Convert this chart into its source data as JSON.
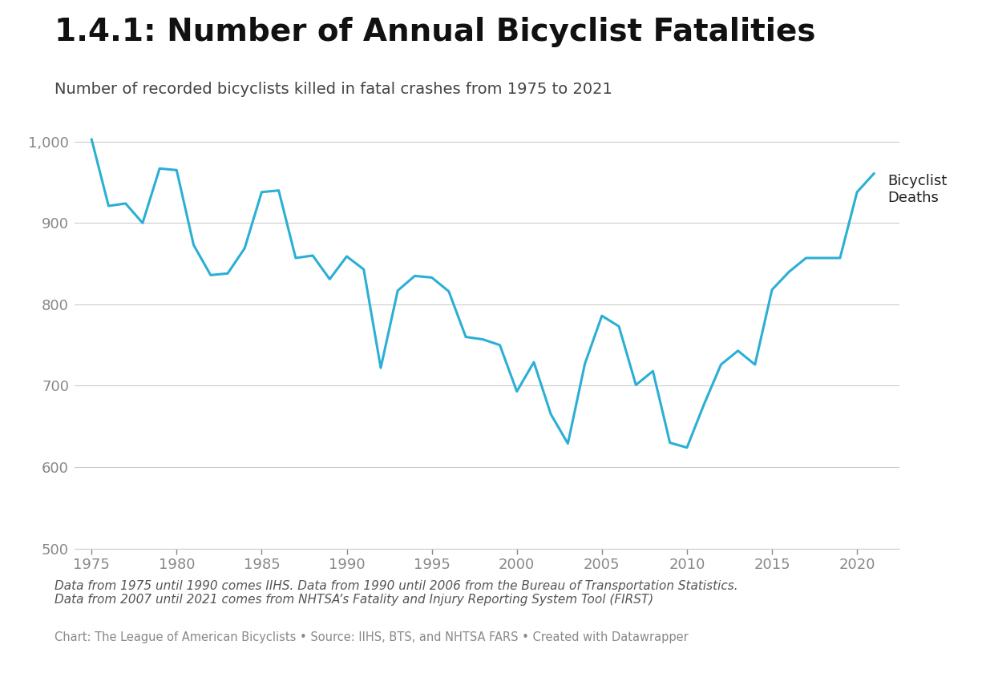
{
  "title": "1.4.1: Number of Annual Bicyclist Fatalities",
  "subtitle": "Number of recorded bicyclists killed in fatal crashes from 1975 to 2021",
  "line_color": "#2BAFD4",
  "line_width": 2.2,
  "background_color": "#ffffff",
  "label_text": "Bicyclist\nDeaths",
  "footer_italic": "Data from 1975 until 1990 comes IIHS. Data from 1990 until 2006 from the Bureau of Transportation Statistics.\nData from 2007 until 2021 comes from NHTSA’s Fatality and Injury Reporting System Tool (FIRST)",
  "footer_plain": "Chart: The League of American Bicyclists • Source: IIHS, BTS, and NHTSA FARS • Created with Datawrapper",
  "years": [
    1975,
    1976,
    1977,
    1978,
    1979,
    1980,
    1981,
    1982,
    1983,
    1984,
    1985,
    1986,
    1987,
    1988,
    1989,
    1990,
    1991,
    1992,
    1993,
    1994,
    1995,
    1996,
    1997,
    1998,
    1999,
    2000,
    2001,
    2002,
    2003,
    2004,
    2005,
    2006,
    2007,
    2008,
    2009,
    2010,
    2011,
    2012,
    2013,
    2014,
    2015,
    2016,
    2017,
    2018,
    2019,
    2020,
    2021
  ],
  "deaths": [
    1003,
    921,
    924,
    900,
    967,
    965,
    873,
    836,
    838,
    869,
    938,
    940,
    857,
    860,
    831,
    859,
    843,
    722,
    817,
    835,
    833,
    816,
    760,
    757,
    750,
    693,
    729,
    665,
    629,
    727,
    786,
    773,
    701,
    718,
    630,
    624,
    677,
    726,
    743,
    726,
    818,
    840,
    857,
    857,
    857,
    938,
    961
  ],
  "ylim": [
    500,
    1050
  ],
  "xlim": [
    1974.0,
    2022.5
  ],
  "yticks": [
    500,
    600,
    700,
    800,
    900,
    1000
  ],
  "xticks": [
    1975,
    1980,
    1985,
    1990,
    1995,
    2000,
    2005,
    2010,
    2015,
    2020
  ],
  "grid_color": "#cccccc",
  "tick_color": "#888888",
  "label_fontsize": 13,
  "title_fontsize": 28,
  "subtitle_fontsize": 14,
  "ytick_fontsize": 13,
  "xtick_fontsize": 13,
  "footer_fontsize": 11
}
